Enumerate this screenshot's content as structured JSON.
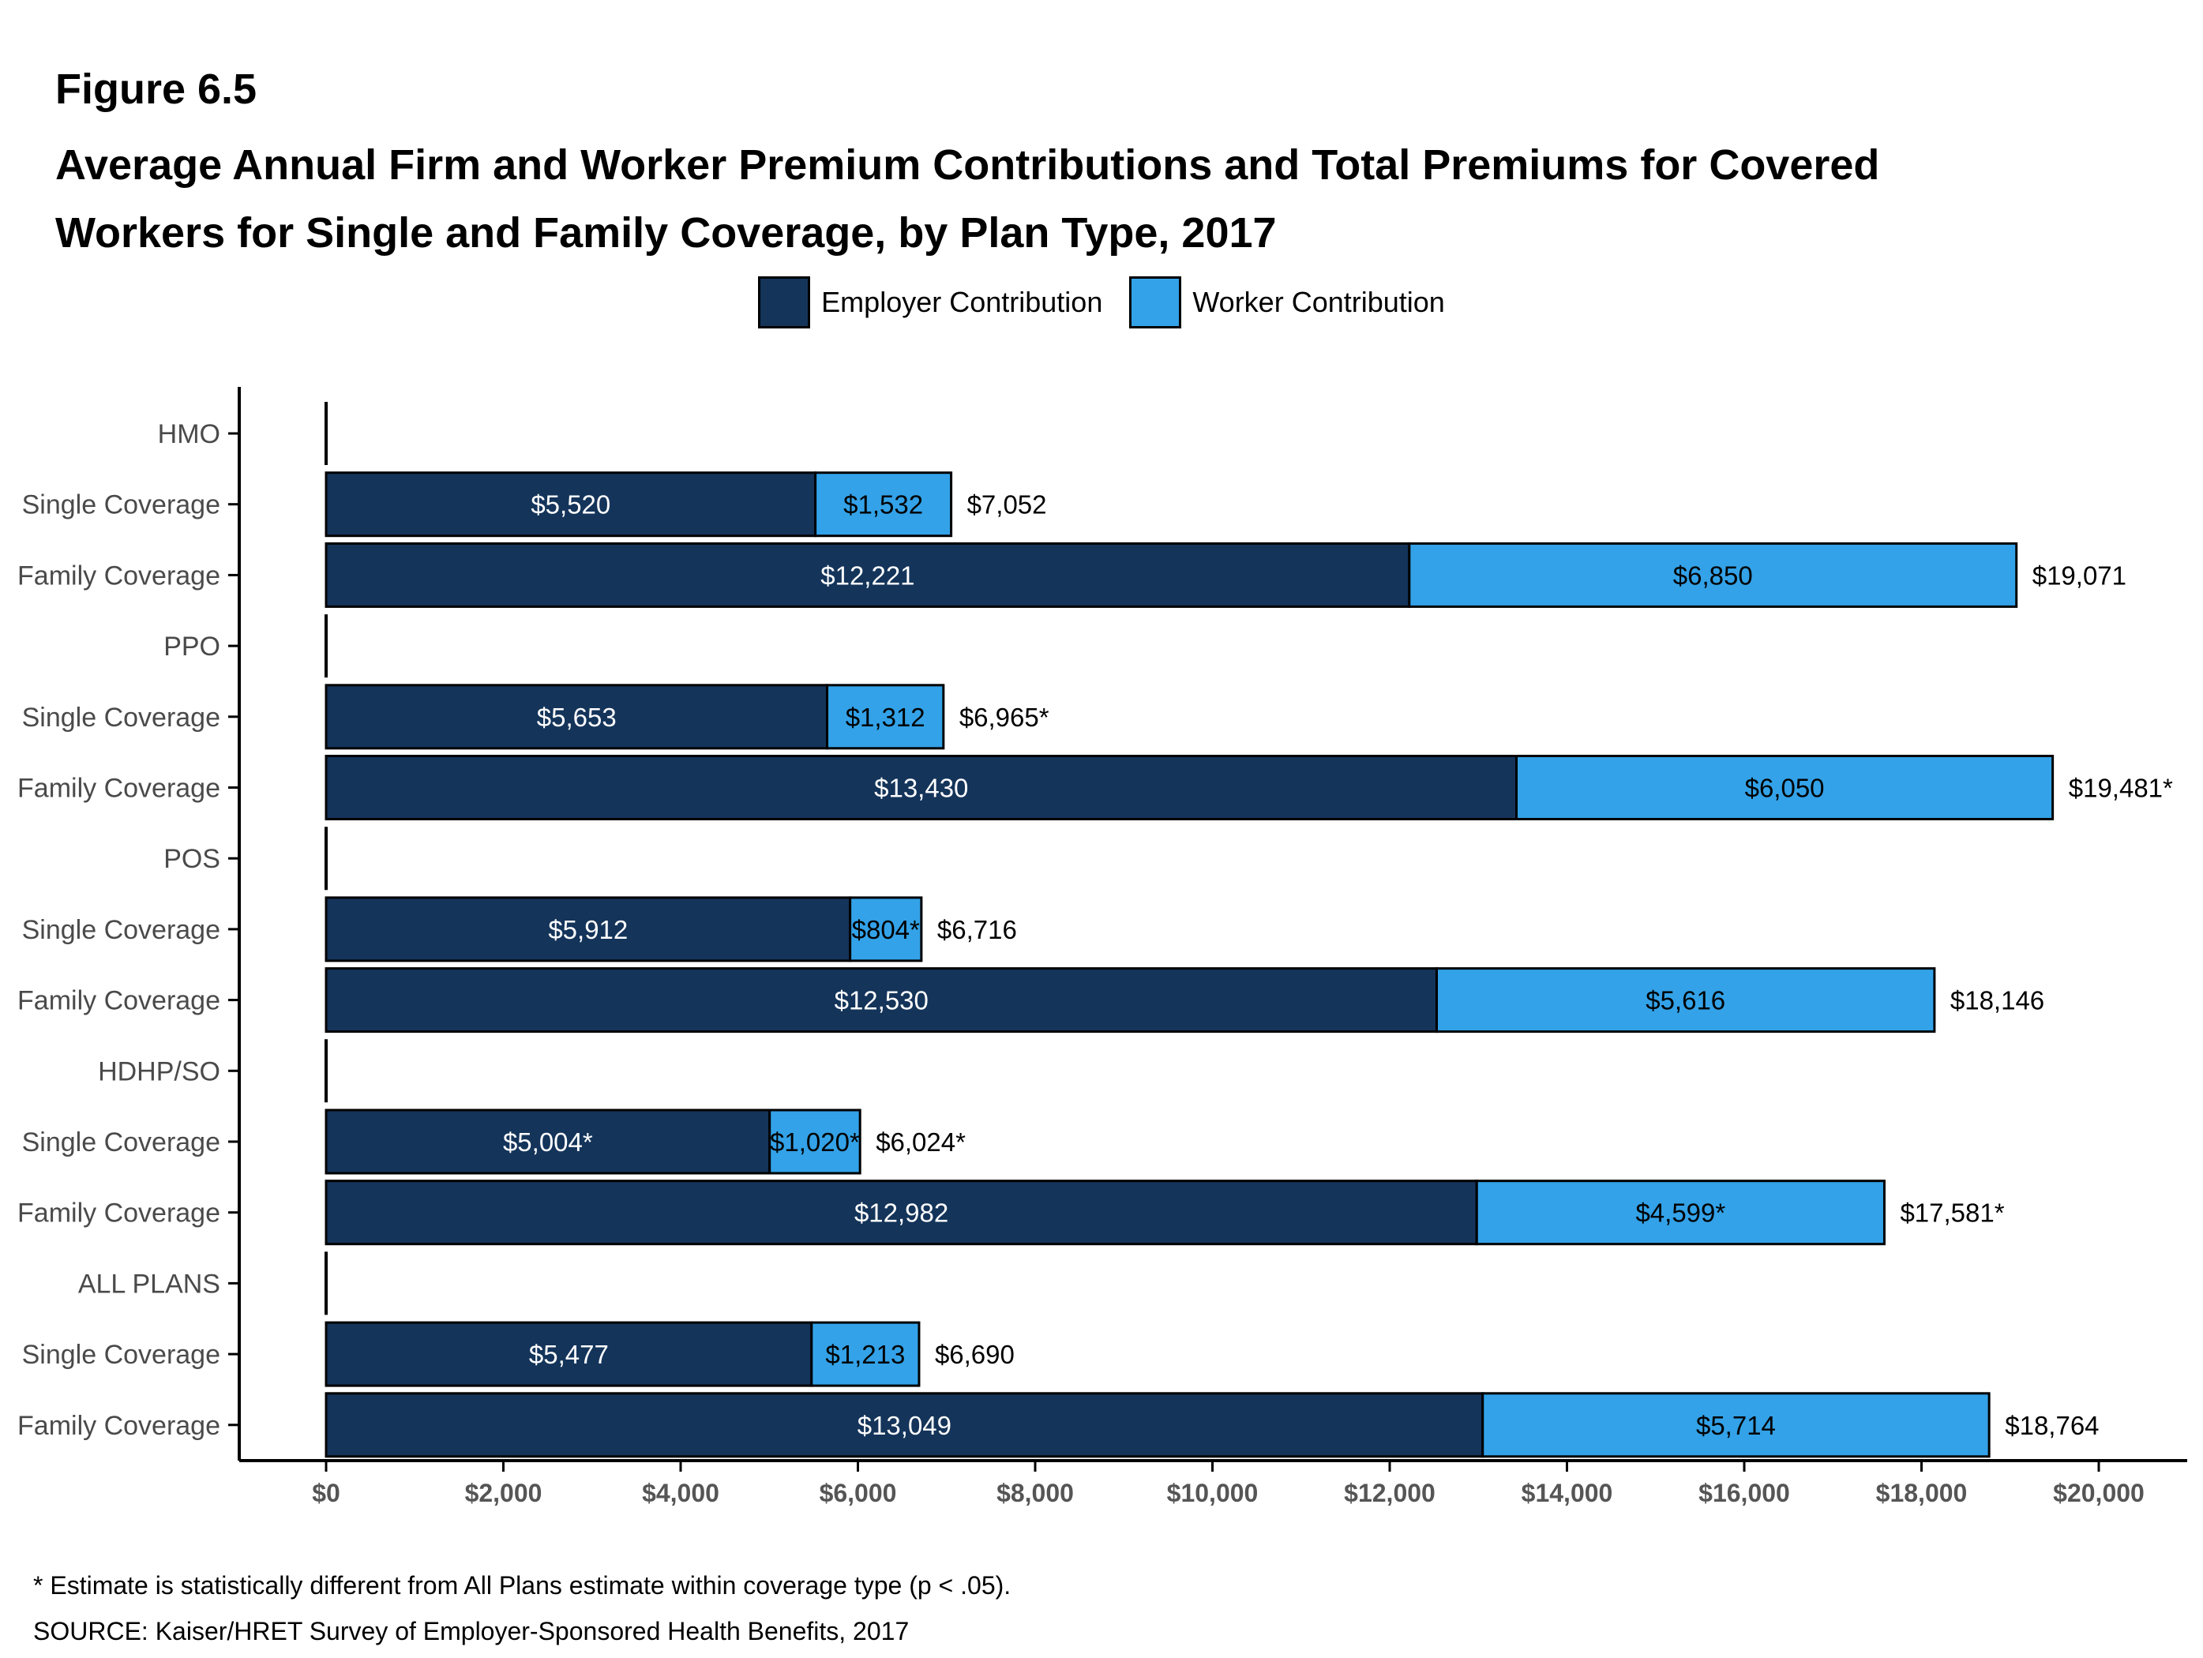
{
  "figure_label": "Figure 6.5",
  "title_lines": [
    "Average Annual Firm and Worker Premium Contributions and Total Premiums for Covered",
    "Workers for Single and Family Coverage, by Plan Type, 2017"
  ],
  "legend": [
    {
      "label": "Employer Contribution",
      "color": "#14345a"
    },
    {
      "label": "Worker Contribution",
      "color": "#33a2e8"
    }
  ],
  "chart_data": {
    "type": "bar",
    "orientation": "horizontal",
    "stacked": true,
    "xlim": [
      0,
      20000
    ],
    "x_ticks": [
      0,
      2000,
      4000,
      6000,
      8000,
      10000,
      12000,
      14000,
      16000,
      18000,
      20000
    ],
    "x_tick_labels": [
      "$0",
      "$2,000",
      "$4,000",
      "$6,000",
      "$8,000",
      "$10,000",
      "$12,000",
      "$14,000",
      "$16,000",
      "$18,000",
      "$20,000"
    ],
    "grid": false,
    "legend_position": "top",
    "series": [
      {
        "name": "Employer Contribution",
        "color": "#14345a",
        "label_color": "#ffffff"
      },
      {
        "name": "Worker Contribution",
        "color": "#33a2e8",
        "label_color": "#000000"
      }
    ],
    "rows": [
      {
        "category": "HMO",
        "header": true
      },
      {
        "category": "Single Coverage",
        "values": [
          5520,
          1532
        ],
        "labels": [
          "$5,520",
          "$1,532"
        ],
        "total": 7052,
        "total_label": "$7,052"
      },
      {
        "category": "Family Coverage",
        "values": [
          12221,
          6850
        ],
        "labels": [
          "$12,221",
          "$6,850"
        ],
        "total": 19071,
        "total_label": "$19,071"
      },
      {
        "category": "PPO",
        "header": true
      },
      {
        "category": "Single Coverage",
        "values": [
          5653,
          1312
        ],
        "labels": [
          "$5,653",
          "$1,312"
        ],
        "total": 6965,
        "total_label": "$6,965*"
      },
      {
        "category": "Family Coverage",
        "values": [
          13430,
          6050
        ],
        "labels": [
          "$13,430",
          "$6,050"
        ],
        "total": 19481,
        "total_label": "$19,481*"
      },
      {
        "category": "POS",
        "header": true
      },
      {
        "category": "Single Coverage",
        "values": [
          5912,
          804
        ],
        "labels": [
          "$5,912",
          "$804*"
        ],
        "total": 6716,
        "total_label": "$6,716"
      },
      {
        "category": "Family Coverage",
        "values": [
          12530,
          5616
        ],
        "labels": [
          "$12,530",
          "$5,616"
        ],
        "total": 18146,
        "total_label": "$18,146"
      },
      {
        "category": "HDHP/SO",
        "header": true
      },
      {
        "category": "Single Coverage",
        "values": [
          5004,
          1020
        ],
        "labels": [
          "$5,004*",
          "$1,020*"
        ],
        "total": 6024,
        "total_label": "$6,024*"
      },
      {
        "category": "Family Coverage",
        "values": [
          12982,
          4599
        ],
        "labels": [
          "$12,982",
          "$4,599*"
        ],
        "total": 17581,
        "total_label": "$17,581*"
      },
      {
        "category": "ALL PLANS",
        "header": true
      },
      {
        "category": "Single Coverage",
        "values": [
          5477,
          1213
        ],
        "labels": [
          "$5,477",
          "$1,213"
        ],
        "total": 6690,
        "total_label": "$6,690"
      },
      {
        "category": "Family Coverage",
        "values": [
          13049,
          5714
        ],
        "labels": [
          "$13,049",
          "$5,714"
        ],
        "total": 18764,
        "total_label": "$18,764"
      }
    ]
  },
  "footnote": "* Estimate is statistically different from All Plans estimate within coverage type (p < .05).",
  "source": "SOURCE: Kaiser/HRET Survey of Employer-Sponsored Health Benefits, 2017"
}
